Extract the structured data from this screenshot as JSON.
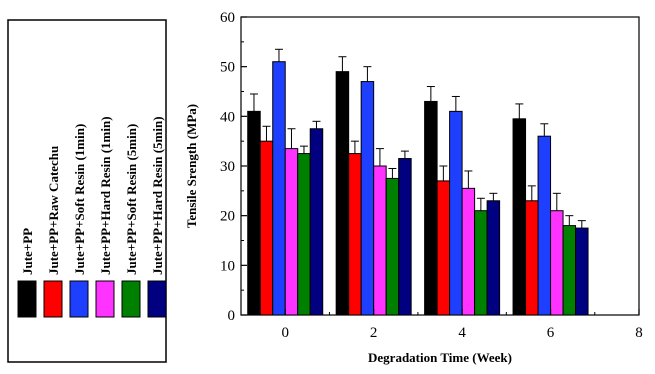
{
  "chart_data": {
    "type": "bar",
    "xlabel": "Degradation Time (Week)",
    "ylabel": "Tensile Srength (MPa)",
    "x": [
      0,
      2,
      4,
      6
    ],
    "xlim": [
      -1,
      8
    ],
    "xticks": [
      "0",
      "2",
      "4",
      "6",
      "8"
    ],
    "ylim": [
      0,
      60
    ],
    "yticks": [
      "0",
      "10",
      "20",
      "30",
      "40",
      "50",
      "60"
    ],
    "grid": false,
    "legend_position": "left",
    "error_bars": true,
    "series": [
      {
        "name": "Jute+PP",
        "color": "#000000",
        "values": [
          41,
          49,
          43,
          39.5
        ],
        "errors": [
          3.5,
          3,
          3,
          3
        ]
      },
      {
        "name": "Jute+PP+Raw Catechu",
        "color": "#ff0000",
        "values": [
          35,
          32.5,
          27,
          23
        ],
        "errors": [
          3,
          2.5,
          3,
          3
        ]
      },
      {
        "name": "Jute+PP+Soft Resin (1min)",
        "color": "#1f3fff",
        "values": [
          51,
          47,
          41,
          36
        ],
        "errors": [
          2.5,
          3,
          3,
          2.5
        ]
      },
      {
        "name": "Jute+PP+Hard Resin (1min)",
        "color": "#ff33ff",
        "values": [
          33.5,
          30,
          25.5,
          21
        ],
        "errors": [
          4,
          3.5,
          3.5,
          3.5
        ]
      },
      {
        "name": "Jute+PP+Soft Resin (5min)",
        "color": "#008000",
        "values": [
          32.5,
          27.5,
          21,
          18
        ],
        "errors": [
          1.5,
          2,
          2.5,
          2
        ]
      },
      {
        "name": "Jute+PP+Hard Resin (5min)",
        "color": "#000080",
        "values": [
          37.5,
          31.5,
          23,
          17.5
        ],
        "errors": [
          1.5,
          1.5,
          1.5,
          1.5
        ]
      }
    ]
  }
}
